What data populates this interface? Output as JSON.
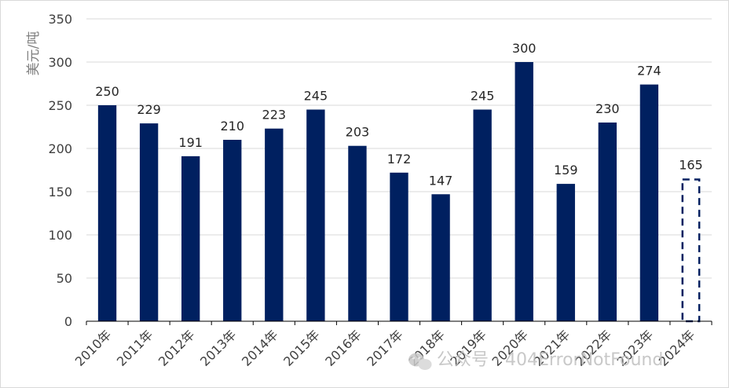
{
  "chart_data": {
    "type": "bar",
    "title": "",
    "ylabel": "美元/吨",
    "xlabel": "",
    "ylim": [
      0,
      350
    ],
    "yticks": [
      0,
      50,
      100,
      150,
      200,
      250,
      300,
      350
    ],
    "categories": [
      "2010年",
      "2011年",
      "2012年",
      "2013年",
      "2014年",
      "2015年",
      "2016年",
      "2017年",
      "2018年",
      "2019年",
      "2020年",
      "2021年",
      "2022年",
      "2023年",
      "2024年"
    ],
    "values": [
      250,
      229,
      191,
      210,
      223,
      245,
      203,
      172,
      147,
      245,
      300,
      159,
      230,
      274,
      165
    ],
    "data_labels": [
      "250",
      "229",
      "191",
      "210",
      "223",
      "245",
      "203",
      "172",
      "147",
      "245",
      "300",
      "159",
      "230",
      "274",
      "165"
    ],
    "estimated_categories": [
      "2024年"
    ],
    "grid": true,
    "legend": "none",
    "colors": {
      "bar": "#002060",
      "grid": "#d9d9d9",
      "axis": "#000000"
    }
  },
  "watermark": {
    "text": "公众号 · 404ErrorNotFound",
    "icon": "wechat-icon"
  }
}
